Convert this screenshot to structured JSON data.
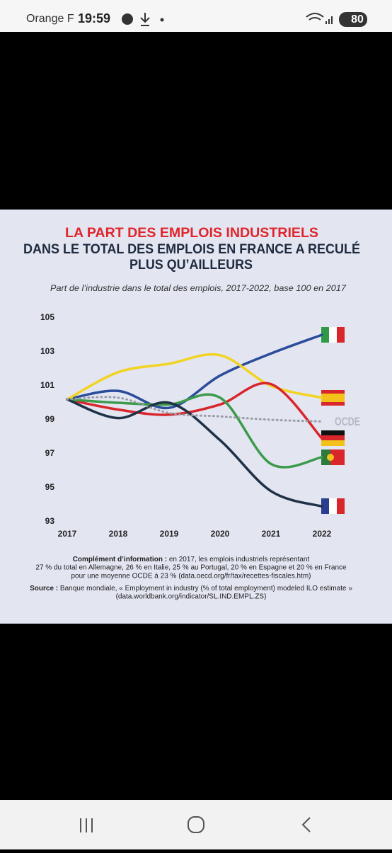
{
  "status_bar": {
    "carrier": "Orange F",
    "time": "19:59",
    "battery": "80"
  },
  "chart_data": {
    "type": "line",
    "title": [
      "LA PART DES EMPLOIS INDUSTRIELS",
      "DANS LE TOTAL DES EMPLOIS EN FRANCE A RECULÉ",
      "PLUS QU’AILLEURS"
    ],
    "subtitle": "Part de l’industrie dans le total des emplois, 2017-2022, base 100 en 2017",
    "categories": [
      "2017",
      "2018",
      "2019",
      "2020",
      "2021",
      "2022"
    ],
    "ylim": [
      93,
      105
    ],
    "yticks": [
      93,
      95,
      97,
      99,
      101,
      103,
      105
    ],
    "grid": false,
    "series": [
      {
        "color": "#2b4c9b",
        "values": [
          100.2,
          100.7,
          99.7,
          101.6,
          102.9,
          104.0
        ]
      },
      {
        "color": "#f2d322",
        "values": [
          100.2,
          101.8,
          102.3,
          102.8,
          101.0,
          100.3
        ]
      },
      {
        "color": "#d9262b",
        "values": [
          100.2,
          99.6,
          99.3,
          99.9,
          101.1,
          97.9
        ]
      },
      {
        "color": "#3b9a4b",
        "values": [
          100.2,
          100.0,
          99.9,
          100.3,
          96.4,
          96.8
        ]
      },
      {
        "color": "#1f3146",
        "values": [
          100.2,
          99.1,
          100.0,
          97.8,
          94.8,
          93.9
        ]
      },
      {
        "name": "OCDE",
        "color": "#9a9ca6",
        "dashed": true,
        "values": [
          100.2,
          100.3,
          99.4,
          99.2,
          99.0,
          98.9
        ]
      }
    ],
    "notes": {
      "complement_label": "Complément d’information :",
      "complement_lines": [
        "en 2017, les emplois industriels représentant",
        "27 % du total en Allemagne, 26 % en Italie, 25 % au Portugal, 20 % en Espagne et 20 % en France",
        "pour une moyenne OCDE à 23 % (data.oecd.org/fr/tax/recettes-fiscales.htm)"
      ],
      "source_label": "Source :",
      "source_lines": [
        "Banque mondiale, « Employment in industry (% of total employment) modeled ILO estimate »",
        "(data.worldbank.org/indicator/SL.IND.EMPL.ZS)"
      ]
    }
  }
}
